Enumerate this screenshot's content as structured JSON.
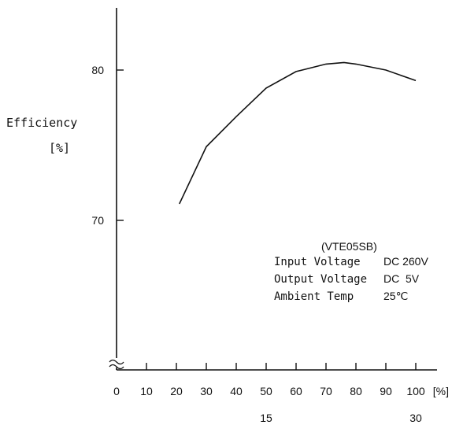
{
  "chart_data": {
    "type": "line",
    "ylabel": "Efficiency",
    "yunit": "[%]",
    "xunit": "[%]",
    "x_ticks": [
      "0",
      "10",
      "20",
      "30",
      "40",
      "50",
      "60",
      "70",
      "80",
      "90",
      "100"
    ],
    "y_ticks": [
      "80",
      "70"
    ],
    "x_secondary_ticks": [
      "15",
      "30"
    ],
    "ylim": [
      60,
      84
    ],
    "xlim": [
      0,
      100
    ],
    "series": [
      {
        "x": [
          21,
          30,
          40,
          50,
          60,
          70,
          76,
          80,
          90,
          100
        ],
        "y": [
          71.1,
          74.9,
          76.9,
          78.8,
          79.9,
          80.4,
          80.5,
          80.4,
          80.0,
          79.3
        ]
      }
    ],
    "annotation": {
      "title": "(VTE05SB)",
      "rows": [
        {
          "label": "Input Voltage",
          "value": "DC 260V"
        },
        {
          "label": "Output Voltage",
          "value": "DC  5V"
        },
        {
          "label": "Ambient Temp",
          "value": "25℃"
        }
      ]
    },
    "grid": false,
    "axis_break": true
  }
}
